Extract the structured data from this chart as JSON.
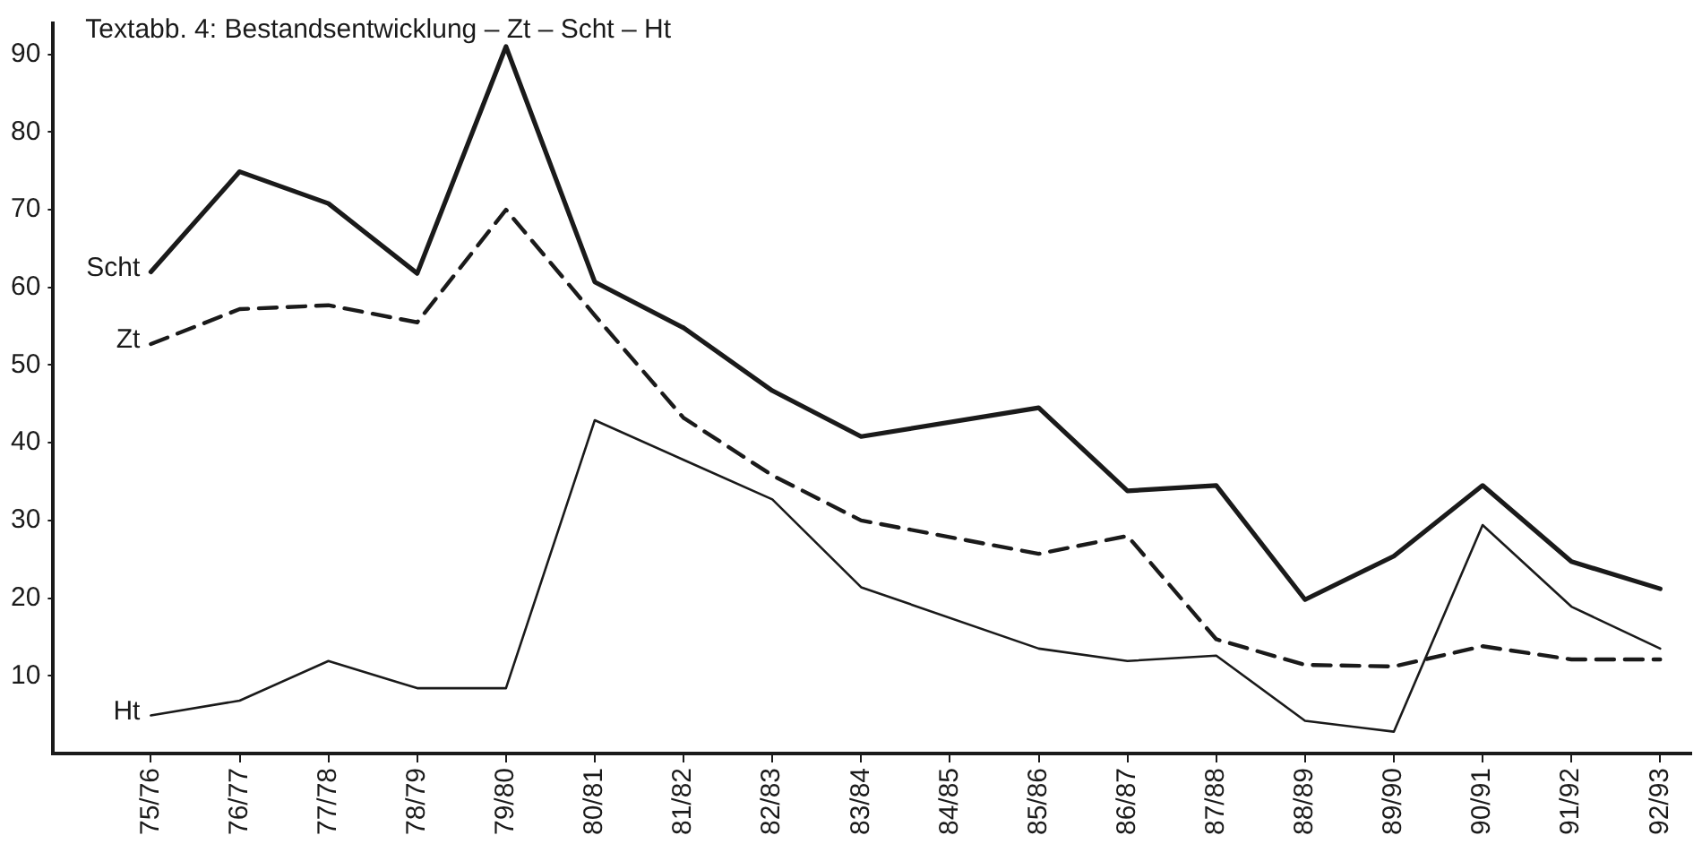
{
  "chart_data": {
    "type": "line",
    "title": "Textabb. 4: Bestandsentwicklung – Zt – Scht – Ht",
    "categories": [
      "75/76",
      "76/77",
      "77/78",
      "78/79",
      "79/80",
      "80/81",
      "81/82",
      "82/83",
      "83/84",
      "84/85",
      "85/86",
      "86/87",
      "87/88",
      "88/89",
      "89/90",
      "90/91",
      "91/92",
      "92/93"
    ],
    "ylim": [
      0,
      94
    ],
    "yticks": [
      10,
      20,
      30,
      40,
      50,
      60,
      70,
      80,
      90
    ],
    "grid": false,
    "legend": false,
    "marker": "none",
    "series": [
      {
        "name": "Scht",
        "color": "#1a1a1a",
        "line_style": "solid",
        "values": [
          62,
          74.9,
          70.8,
          61.8,
          91,
          60.7,
          54.8,
          46.7,
          40.8,
          null,
          44.5,
          33.8,
          34.5,
          19.8,
          25.4,
          34.5,
          24.7,
          21.2
        ]
      },
      {
        "name": "Zt",
        "color": "#1a1a1a",
        "line_style": "dashed",
        "values": [
          52.7,
          57.2,
          57.7,
          55.5,
          70,
          56.4,
          43.2,
          35.8,
          30,
          null,
          25.7,
          28,
          14.7,
          11.4,
          11.2,
          13.8,
          12.1,
          12.1
        ]
      },
      {
        "name": "Ht",
        "color": "#1a1a1a",
        "line_style": "solid",
        "values": [
          4.9,
          6.8,
          11.9,
          8.4,
          8.4,
          42.9,
          37.8,
          32.7,
          21.4,
          null,
          13.5,
          11.9,
          12.6,
          4.2,
          2.8,
          29.4,
          18.9,
          13.5
        ]
      }
    ]
  }
}
